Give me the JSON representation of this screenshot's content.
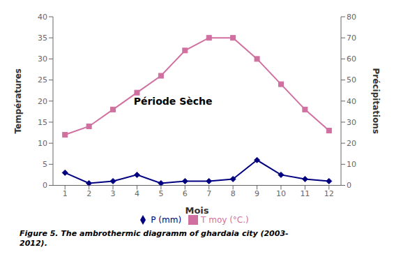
{
  "chart_data": {
    "type": "line",
    "x": [
      1,
      2,
      3,
      4,
      5,
      6,
      7,
      8,
      9,
      10,
      11,
      12
    ],
    "xlim": [
      0.5,
      12.5
    ],
    "xticks": [
      1,
      2,
      3,
      4,
      5,
      6,
      7,
      8,
      9,
      10,
      11,
      12
    ],
    "ylim": [
      0,
      40
    ],
    "yticks": [
      0,
      5,
      10,
      15,
      20,
      25,
      30,
      35,
      40
    ],
    "y2lim": [
      0,
      80
    ],
    "y2ticks": [
      0,
      10,
      20,
      30,
      40,
      50,
      60,
      70,
      80
    ],
    "xlabel": "Mois",
    "ylabel": "Températures",
    "y2label": "Précipitations",
    "series": [
      {
        "name": "T moy (°C.)",
        "color": "#d070a0",
        "marker": "square",
        "values": [
          12,
          14,
          18,
          22,
          26,
          32,
          35,
          35,
          30,
          24,
          18,
          13
        ]
      },
      {
        "name": "P (mm)",
        "color": "#000080",
        "marker": "diamond",
        "axis": "y2",
        "values": [
          6,
          1,
          2,
          5,
          1,
          2,
          2,
          3,
          12,
          5,
          3,
          2
        ]
      }
    ],
    "annotations": [
      {
        "text": "Période Sèche",
        "x": 5.5,
        "y": 20
      }
    ],
    "caption": "Figure 5. The ambrothermic diagramm of ghardaia city (2003-\n2012).",
    "legend": "bottom",
    "grid": false
  }
}
